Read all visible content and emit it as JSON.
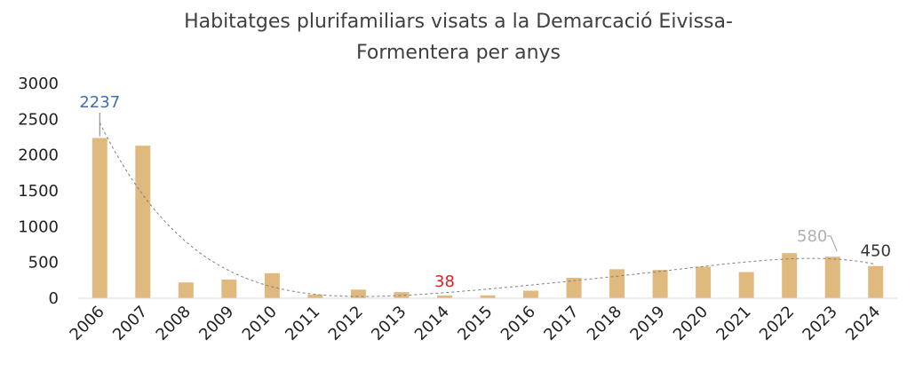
{
  "chart_data": {
    "type": "bar",
    "title_lines": [
      "Habitatges plurifamiliars visats a la Demarcació Eivissa-",
      "Formentera per anys"
    ],
    "categories": [
      "2006",
      "2007",
      "2008",
      "2009",
      "2010",
      "2011",
      "2012",
      "2013",
      "2014",
      "2015",
      "2016",
      "2017",
      "2018",
      "2019",
      "2020",
      "2021",
      "2022",
      "2023",
      "2024"
    ],
    "values": [
      2237,
      2130,
      220,
      260,
      350,
      50,
      120,
      85,
      38,
      40,
      105,
      285,
      405,
      395,
      440,
      365,
      630,
      580,
      450
    ],
    "ylim": [
      0,
      3000
    ],
    "yticks": [
      "3000",
      "2500",
      "2000",
      "1500",
      "1000",
      "500",
      "0"
    ],
    "bar_color": "#e0b97f",
    "trendline": {
      "type": "polynomial",
      "style": "dashed",
      "color": "#7f7f7f"
    },
    "grid": false,
    "legend": "none",
    "annotations": [
      {
        "category": "2006",
        "text": "2237",
        "color": "#3f6fb0"
      },
      {
        "category": "2014",
        "text": "38",
        "color": "#e02020"
      },
      {
        "category": "2023",
        "text": "580",
        "color": "#b0b0b0"
      },
      {
        "category": "2024",
        "text": "450",
        "color": "#333333"
      }
    ]
  }
}
